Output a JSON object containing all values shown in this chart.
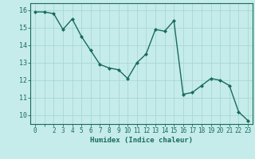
{
  "x": [
    0,
    1,
    2,
    3,
    4,
    5,
    6,
    7,
    8,
    9,
    10,
    11,
    12,
    13,
    14,
    15,
    16,
    17,
    18,
    19,
    20,
    21,
    22,
    23
  ],
  "y": [
    15.9,
    15.9,
    15.8,
    14.9,
    15.5,
    14.5,
    13.7,
    12.9,
    12.7,
    12.6,
    12.1,
    13.0,
    13.5,
    14.9,
    14.8,
    15.4,
    11.2,
    11.3,
    11.7,
    12.1,
    12.0,
    11.7,
    10.2,
    9.7
  ],
  "line_color": "#1a6b5a",
  "marker": "D",
  "marker_size": 2,
  "bg_color": "#c5ecea",
  "grid_color": "#a8d8d0",
  "xlabel": "Humidex (Indice chaleur)",
  "xlim": [
    -0.5,
    23.5
  ],
  "ylim": [
    9.5,
    16.4
  ],
  "yticks": [
    10,
    11,
    12,
    13,
    14,
    15,
    16
  ],
  "xticks": [
    0,
    1,
    2,
    3,
    4,
    5,
    6,
    7,
    8,
    9,
    10,
    11,
    12,
    13,
    14,
    15,
    16,
    17,
    18,
    19,
    20,
    21,
    22,
    23
  ],
  "xtick_labels": [
    "0",
    "",
    "2",
    "3",
    "4",
    "5",
    "6",
    "7",
    "8",
    "9",
    "10",
    "11",
    "12",
    "13",
    "14",
    "15",
    "16",
    "17",
    "18",
    "19",
    "20",
    "21",
    "22",
    "23"
  ]
}
